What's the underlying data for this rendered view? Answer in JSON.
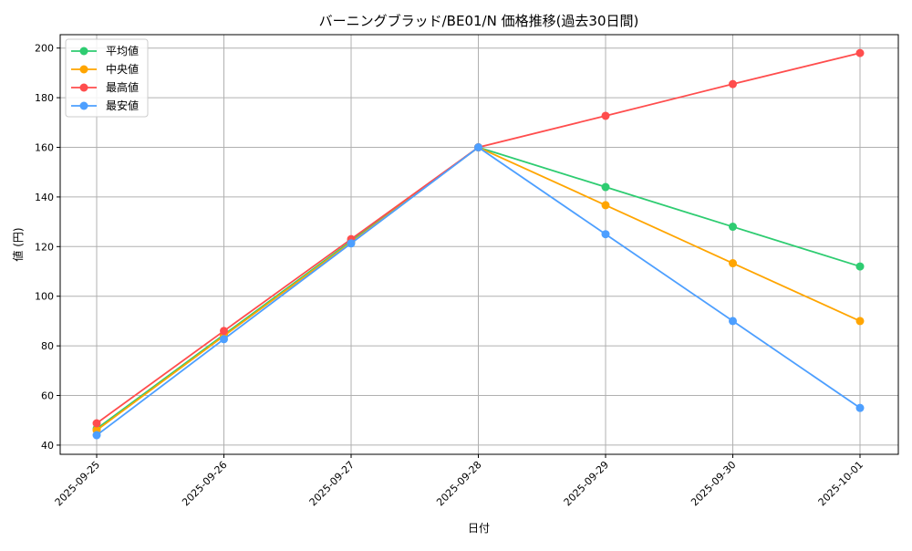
{
  "chart_data": {
    "type": "line",
    "title": "バーニングブラッド/BE01/N 価格推移(過去30日間)",
    "xlabel": "日付",
    "ylabel": "値 (円)",
    "categories": [
      "2025-09-25",
      "2025-09-26",
      "2025-09-27",
      "2025-09-28",
      "2025-09-29",
      "2025-09-30",
      "2025-10-01"
    ],
    "ylim": [
      36.3,
      205.4
    ],
    "yticks": [
      40,
      60,
      80,
      100,
      120,
      140,
      160,
      180,
      200
    ],
    "grid": true,
    "legend_position": "top-left",
    "series": [
      {
        "name": "平均値",
        "color": "#2ecc71",
        "values": [
          46.6,
          84.5,
          122.2,
          160,
          144,
          128,
          112
        ]
      },
      {
        "name": "中央値",
        "color": "#ffa500",
        "values": [
          46,
          84,
          121.7,
          160,
          136.7,
          113.3,
          90
        ]
      },
      {
        "name": "最高値",
        "color": "#ff4d4d",
        "values": [
          48.8,
          86,
          123,
          160,
          172.7,
          185.5,
          198
        ]
      },
      {
        "name": "最安値",
        "color": "#4d9fff",
        "values": [
          44,
          82.7,
          121.3,
          160,
          125,
          90,
          55
        ]
      }
    ]
  }
}
